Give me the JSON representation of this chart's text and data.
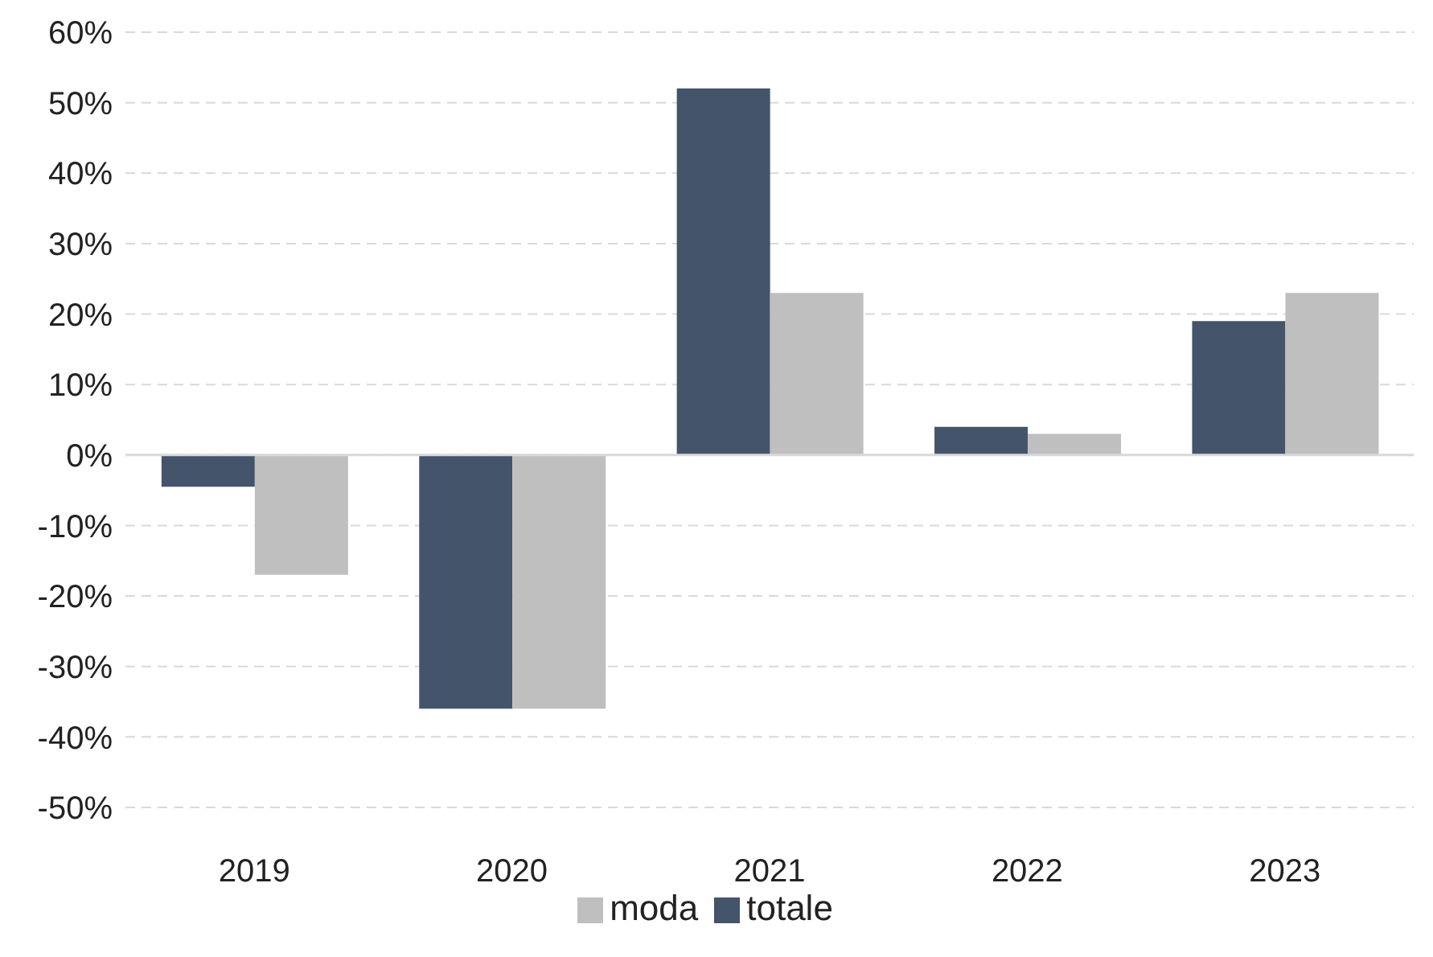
{
  "chart_data": {
    "type": "bar",
    "categories": [
      "2019",
      "2020",
      "2021",
      "2022",
      "2023"
    ],
    "series": [
      {
        "name": "totale",
        "color": "#44546a",
        "values": [
          -4.5,
          -36,
          52,
          4,
          19
        ]
      },
      {
        "name": "moda",
        "color": "#bfbfbf",
        "values": [
          -17,
          -36,
          23,
          3,
          23
        ]
      }
    ],
    "ylim": [
      -50,
      60
    ],
    "yticks": [
      {
        "value": -50,
        "label": "-50%"
      },
      {
        "value": -40,
        "label": "-40%"
      },
      {
        "value": -30,
        "label": "-30%"
      },
      {
        "value": -20,
        "label": "-20%"
      },
      {
        "value": -10,
        "label": "-10%"
      },
      {
        "value": 0,
        "label": "0%"
      },
      {
        "value": 10,
        "label": "10%"
      },
      {
        "value": 20,
        "label": "20%"
      },
      {
        "value": 30,
        "label": "30%"
      },
      {
        "value": 40,
        "label": "40%"
      },
      {
        "value": 50,
        "label": "50%"
      },
      {
        "value": 60,
        "label": "60%"
      }
    ],
    "grid": "y",
    "legend": "bottom"
  }
}
